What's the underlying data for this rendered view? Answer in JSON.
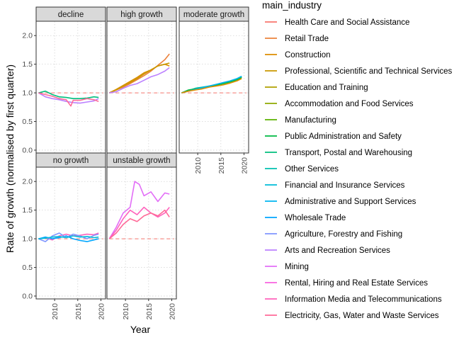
{
  "chart_data": {
    "type": "line",
    "xlabel": "Year",
    "ylabel": "Rate of growth (normalised by first quarter)",
    "xlim": [
      2006,
      2021
    ],
    "ylim": [
      -0.05,
      2.25
    ],
    "x_ticks": [
      2010,
      2015,
      2020
    ],
    "x_tick_labels": [
      "2010",
      "2015",
      "2020"
    ],
    "y_ticks": [
      0.0,
      0.5,
      1.0,
      1.5,
      2.0
    ],
    "y_tick_labels": [
      "0.0",
      "0.5",
      "1.0",
      "1.5",
      "2.0"
    ],
    "reference_line": 1.0,
    "grid": true,
    "legend_title": "main_industry",
    "legend_position": "right",
    "legend": [
      {
        "label": "Health Care and Social Assistance",
        "color": "#F8766D"
      },
      {
        "label": "Retail Trade",
        "color": "#EC823C"
      },
      {
        "label": "Construction",
        "color": "#DD8D00"
      },
      {
        "label": "Professional, Scientific and Technical Services",
        "color": "#C99800"
      },
      {
        "label": "Education and Training",
        "color": "#B0A100"
      },
      {
        "label": "Accommodation and Food Services",
        "color": "#8FAA00"
      },
      {
        "label": "Manufacturing",
        "color": "#5BB300"
      },
      {
        "label": "Public Administration and Safety",
        "color": "#00BA42"
      },
      {
        "label": "Transport, Postal and Warehousing",
        "color": "#00BF7D"
      },
      {
        "label": "Other Services",
        "color": "#00C0AF"
      },
      {
        "label": "Financial and Insurance Services",
        "color": "#00BCD8"
      },
      {
        "label": "Administrative and Support Services",
        "color": "#00B4F0"
      },
      {
        "label": "Wholesale Trade",
        "color": "#00A5FF"
      },
      {
        "label": "Agriculture, Forestry and Fishing",
        "color": "#7F96FF"
      },
      {
        "label": "Arts and Recreation Services",
        "color": "#BC81FF"
      },
      {
        "label": "Mining",
        "color": "#E26EF7"
      },
      {
        "label": "Rental, Hiring and Real Estate Services",
        "color": "#F863DF"
      },
      {
        "label": "Information Media and Telecommunications",
        "color": "#FF62BC"
      },
      {
        "label": "Electricity, Gas, Water and Waste Services",
        "color": "#FF6A98"
      }
    ],
    "panels": [
      {
        "title": "decline",
        "series": [
          {
            "color": "#00BF7D",
            "x": [
              2006.5,
              2008,
              2009.5,
              2011,
              2012.5,
              2014,
              2015.5,
              2017,
              2018.5,
              2019.5
            ],
            "y": [
              1.0,
              1.03,
              0.97,
              0.93,
              0.92,
              0.9,
              0.9,
              0.91,
              0.93,
              0.92
            ]
          },
          {
            "color": "#BC81FF",
            "x": [
              2006.5,
              2008,
              2009.5,
              2011,
              2012.5,
              2014,
              2015.5,
              2017,
              2018.5,
              2019.5
            ],
            "y": [
              1.0,
              0.93,
              0.9,
              0.88,
              0.85,
              0.83,
              0.82,
              0.84,
              0.86,
              0.9
            ]
          },
          {
            "color": "#FF6A98",
            "x": [
              2006.5,
              2008,
              2009.5,
              2011,
              2012.5,
              2013.5,
              2014,
              2015.5,
              2017,
              2018.5,
              2019.5
            ],
            "y": [
              1.0,
              0.97,
              0.94,
              0.9,
              0.88,
              0.77,
              0.87,
              0.87,
              0.9,
              0.88,
              0.85
            ]
          }
        ]
      },
      {
        "title": "high growth",
        "series": [
          {
            "color": "#EC823C",
            "x": [
              2006.5,
              2008,
              2009.5,
              2011,
              2012.5,
              2014,
              2015.5,
              2017,
              2018.5,
              2019.5
            ],
            "y": [
              1.0,
              1.05,
              1.1,
              1.16,
              1.23,
              1.3,
              1.38,
              1.48,
              1.58,
              1.68
            ]
          },
          {
            "color": "#DD8D00",
            "x": [
              2006.5,
              2008,
              2009.5,
              2011,
              2012.5,
              2014,
              2015.5,
              2017,
              2018.5,
              2019.5
            ],
            "y": [
              1.0,
              1.06,
              1.13,
              1.2,
              1.27,
              1.35,
              1.4,
              1.47,
              1.5,
              1.47
            ]
          },
          {
            "color": "#C99800",
            "x": [
              2006.5,
              2008,
              2009.5,
              2011,
              2012.5,
              2014,
              2015.5,
              2017,
              2018.5,
              2019.5
            ],
            "y": [
              1.0,
              1.05,
              1.12,
              1.18,
              1.25,
              1.33,
              1.4,
              1.47,
              1.5,
              1.52
            ]
          },
          {
            "color": "#BC81FF",
            "x": [
              2006.5,
              2008,
              2009.5,
              2011,
              2012.5,
              2014,
              2015.5,
              2017,
              2018.5,
              2019.5
            ],
            "y": [
              1.0,
              1.02,
              1.08,
              1.13,
              1.16,
              1.22,
              1.28,
              1.32,
              1.38,
              1.44
            ]
          }
        ]
      },
      {
        "title": "moderate growth",
        "series": [
          {
            "color": "#00C0AF",
            "x": [
              2006.5,
              2008,
              2009.5,
              2011,
              2012.5,
              2014,
              2015.5,
              2017,
              2018.5,
              2019.5
            ],
            "y": [
              1.0,
              1.04,
              1.08,
              1.1,
              1.12,
              1.14,
              1.17,
              1.2,
              1.24,
              1.28
            ]
          },
          {
            "color": "#00BA42",
            "x": [
              2006.5,
              2008,
              2009.5,
              2011,
              2012.5,
              2014,
              2015.5,
              2017,
              2018.5,
              2019.5
            ],
            "y": [
              1.0,
              1.05,
              1.07,
              1.09,
              1.11,
              1.13,
              1.16,
              1.19,
              1.23,
              1.27
            ]
          },
          {
            "color": "#00B4F0",
            "x": [
              2006.5,
              2008,
              2009.5,
              2011,
              2012.5,
              2014,
              2015.5,
              2017,
              2018.5,
              2019.5
            ],
            "y": [
              1.0,
              1.03,
              1.06,
              1.09,
              1.12,
              1.15,
              1.18,
              1.21,
              1.25,
              1.29
            ]
          },
          {
            "color": "#DD8D00",
            "x": [
              2006.5,
              2008,
              2009.5,
              2011,
              2012.5,
              2014,
              2015.5,
              2017,
              2018.5,
              2019.5
            ],
            "y": [
              1.0,
              1.03,
              1.05,
              1.07,
              1.1,
              1.12,
              1.14,
              1.17,
              1.21,
              1.25
            ]
          }
        ]
      },
      {
        "title": "no growth",
        "series": [
          {
            "color": "#FF62BC",
            "x": [
              2006.5,
              2008,
              2009.5,
              2011,
              2012.5,
              2014,
              2015.5,
              2017,
              2018.5,
              2019.5
            ],
            "y": [
              1.0,
              1.02,
              0.98,
              1.05,
              1.08,
              1.05,
              1.06,
              1.08,
              1.07,
              1.1
            ]
          },
          {
            "color": "#00A5FF",
            "x": [
              2006.5,
              2008,
              2009.5,
              2011,
              2012.5,
              2014,
              2015.5,
              2017,
              2018.5,
              2019.5
            ],
            "y": [
              1.0,
              1.03,
              1.0,
              1.02,
              1.05,
              1.0,
              0.97,
              0.95,
              0.98,
              1.0
            ]
          },
          {
            "color": "#7F96FF",
            "x": [
              2006.5,
              2008,
              2009.5,
              2011,
              2012.5,
              2014,
              2015.5,
              2017,
              2018.5,
              2019.5
            ],
            "y": [
              1.0,
              0.95,
              1.05,
              1.1,
              1.02,
              1.08,
              1.05,
              1.0,
              1.06,
              1.08
            ]
          },
          {
            "color": "#00BCD8",
            "x": [
              2006.5,
              2008,
              2009.5,
              2011,
              2012.5,
              2014,
              2015.5,
              2017,
              2018.5,
              2019.5
            ],
            "y": [
              1.0,
              1.01,
              1.03,
              1.04,
              1.02,
              1.05,
              1.03,
              1.04,
              1.02,
              1.03
            ]
          }
        ]
      },
      {
        "title": "unstable growth",
        "series": [
          {
            "color": "#E26EF7",
            "x": [
              2006.5,
              2008,
              2009.5,
              2011,
              2012,
              2013,
              2014,
              2015.5,
              2017,
              2018.5,
              2019.5
            ],
            "y": [
              1.0,
              1.2,
              1.45,
              1.55,
              2.0,
              1.95,
              1.75,
              1.82,
              1.65,
              1.8,
              1.78
            ]
          },
          {
            "color": "#FF62BC",
            "x": [
              2006.5,
              2008,
              2009.5,
              2011,
              2012.5,
              2014,
              2015.5,
              2017,
              2018.5,
              2019.5
            ],
            "y": [
              1.0,
              1.15,
              1.35,
              1.5,
              1.42,
              1.55,
              1.45,
              1.38,
              1.45,
              1.55
            ]
          },
          {
            "color": "#FF6A98",
            "x": [
              2006.5,
              2008,
              2009.5,
              2011,
              2012.5,
              2014,
              2015.5,
              2017,
              2018.5,
              2019.5
            ],
            "y": [
              1.0,
              1.1,
              1.25,
              1.35,
              1.3,
              1.4,
              1.45,
              1.4,
              1.5,
              1.38
            ]
          }
        ]
      }
    ]
  }
}
